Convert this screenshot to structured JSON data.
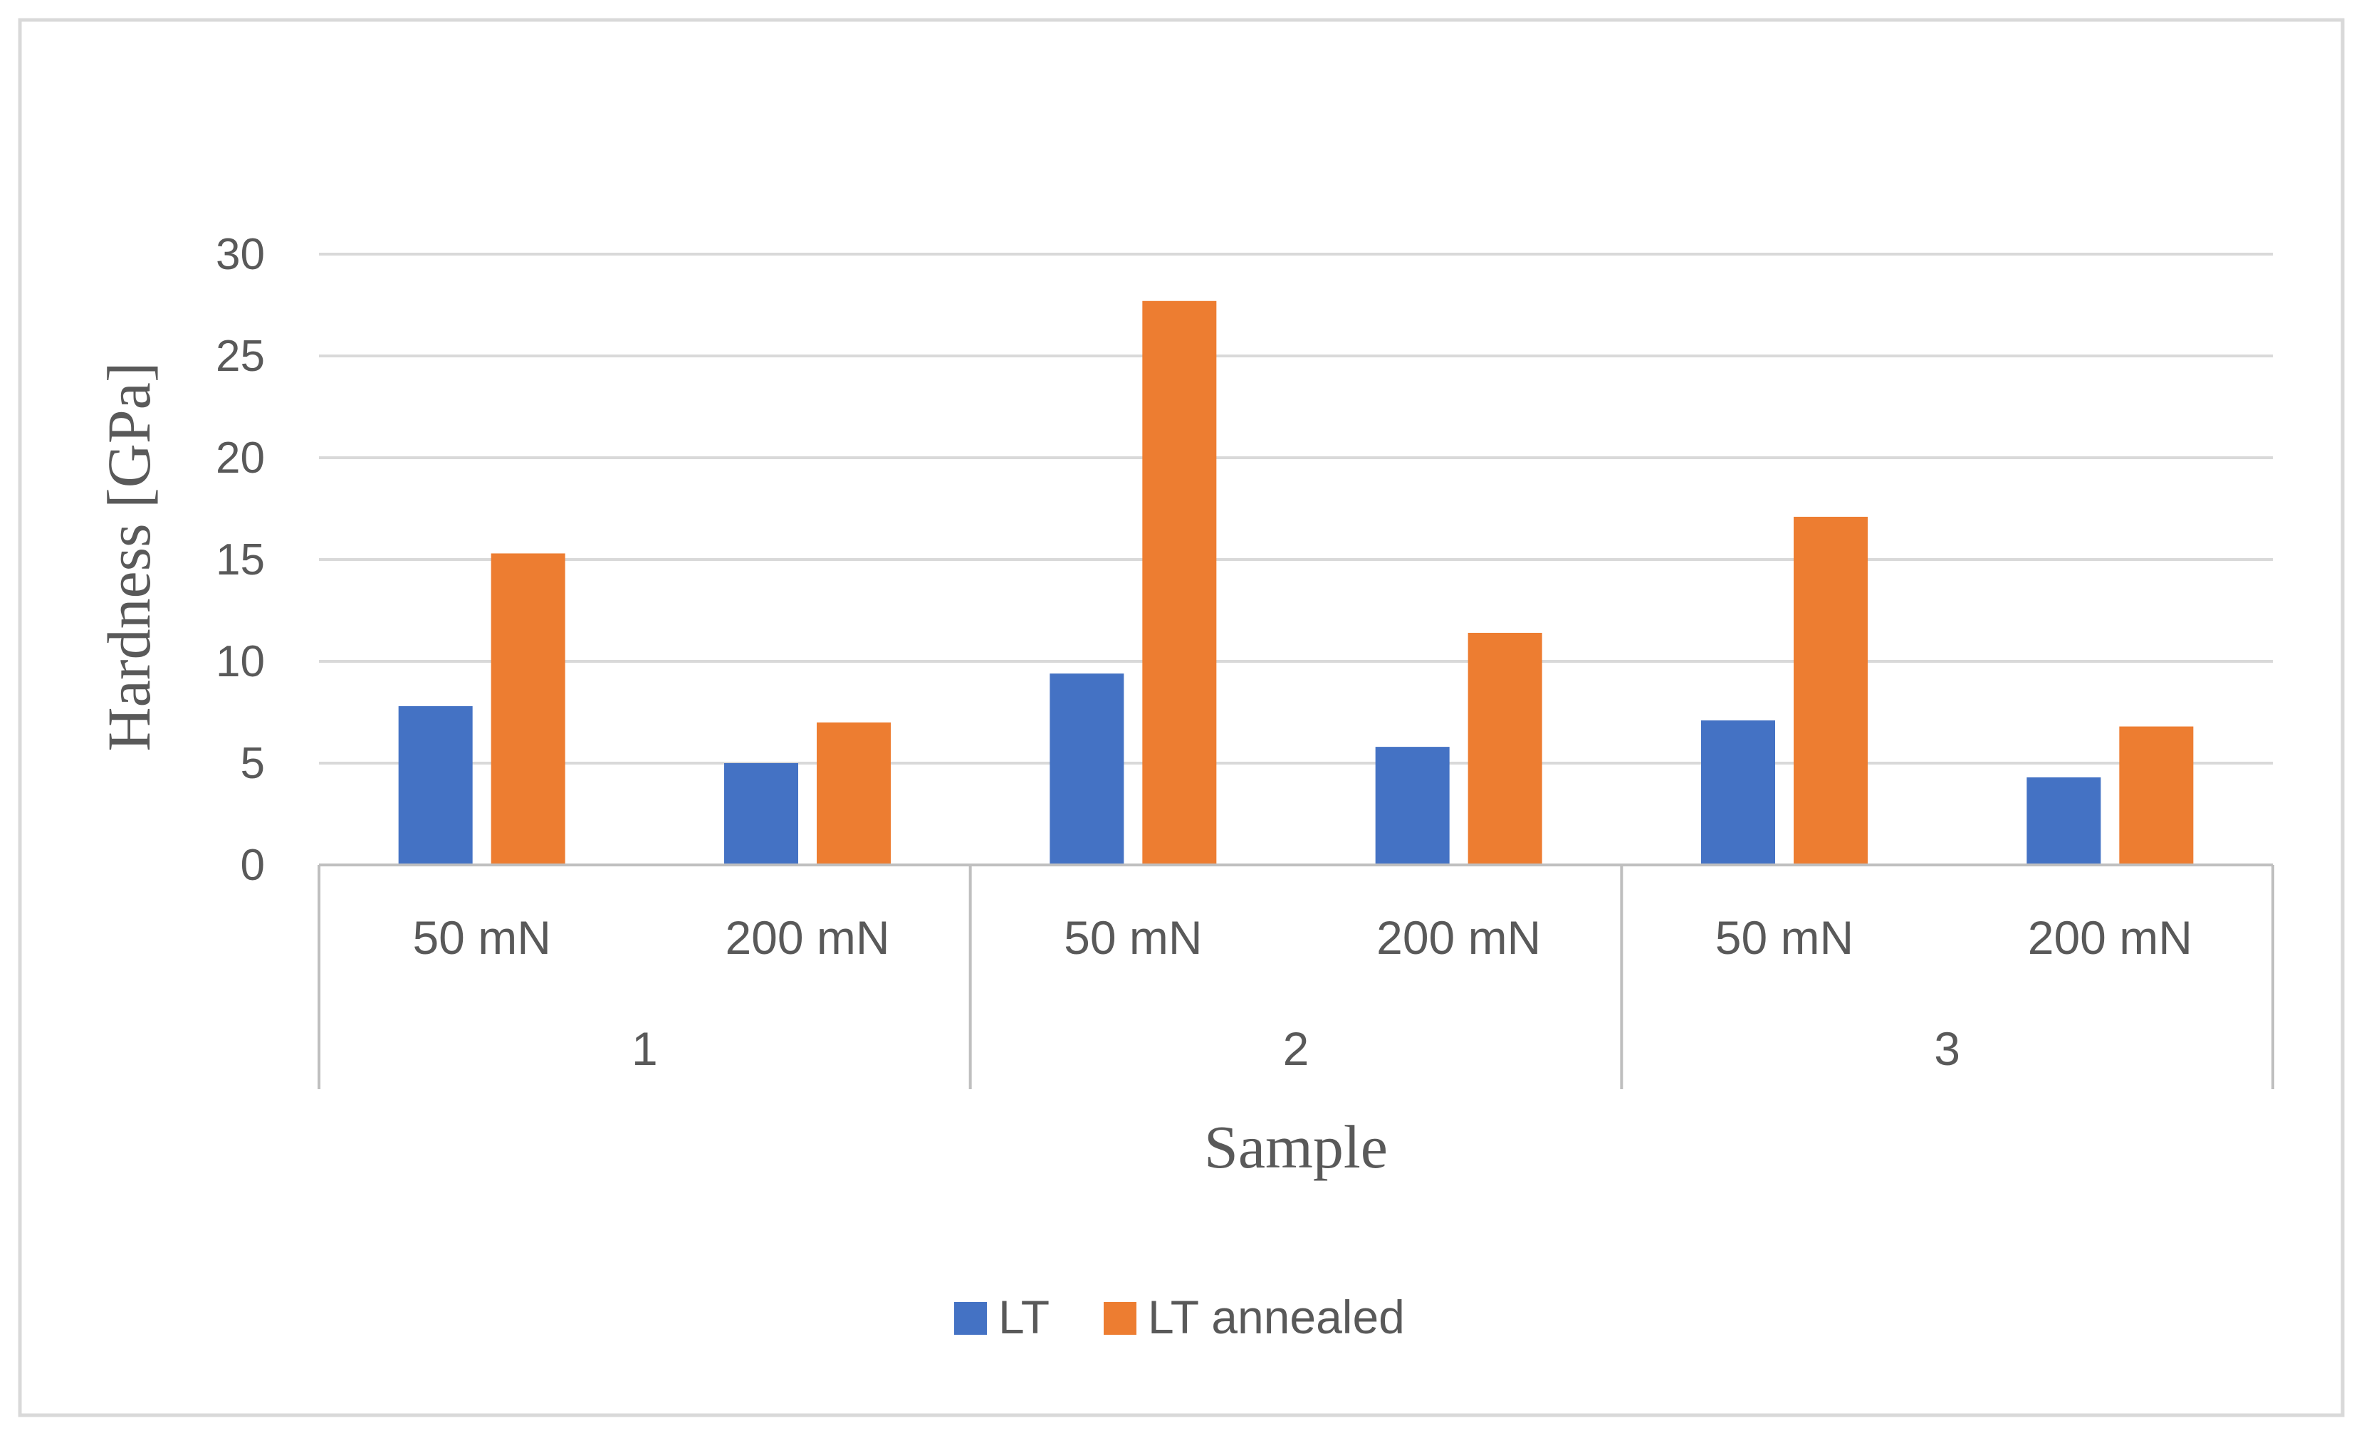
{
  "chart_data": {
    "type": "bar",
    "title": "",
    "xlabel": "Sample",
    "ylabel": "Hardness [GPa]",
    "ylim": [
      0,
      30
    ],
    "yticks": [
      0,
      5,
      10,
      15,
      20,
      25,
      30
    ],
    "grid": true,
    "legend_position": "bottom",
    "groups": [
      "1",
      "2",
      "3"
    ],
    "categories": [
      "50 mN",
      "200 mN",
      "50 mN",
      "200 mN",
      "50 mN",
      "200 mN"
    ],
    "series": [
      {
        "name": "LT",
        "color": "#4472C4",
        "values": [
          7.8,
          5.0,
          9.4,
          5.8,
          7.1,
          4.3
        ]
      },
      {
        "name": "LT annealed",
        "color": "#ED7D31",
        "values": [
          15.3,
          7.0,
          27.7,
          11.4,
          17.1,
          6.8
        ]
      }
    ],
    "colors": {
      "grid": "#d9d9d9",
      "axis": "#bfbfbf",
      "text": "#595959",
      "frame": "#d9d9d9"
    }
  }
}
